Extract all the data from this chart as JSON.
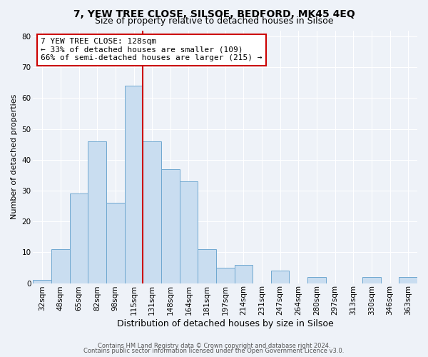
{
  "title": "7, YEW TREE CLOSE, SILSOE, BEDFORD, MK45 4EQ",
  "subtitle": "Size of property relative to detached houses in Silsoe",
  "xlabel": "Distribution of detached houses by size in Silsoe",
  "ylabel": "Number of detached properties",
  "categories": [
    "32sqm",
    "48sqm",
    "65sqm",
    "82sqm",
    "98sqm",
    "115sqm",
    "131sqm",
    "148sqm",
    "164sqm",
    "181sqm",
    "197sqm",
    "214sqm",
    "231sqm",
    "247sqm",
    "264sqm",
    "280sqm",
    "297sqm",
    "313sqm",
    "330sqm",
    "346sqm",
    "363sqm"
  ],
  "values": [
    1,
    11,
    29,
    46,
    26,
    64,
    46,
    37,
    33,
    11,
    5,
    6,
    0,
    4,
    0,
    2,
    0,
    0,
    2,
    0,
    2
  ],
  "bar_color": "#c9ddf0",
  "bar_edge_color": "#6fa8d0",
  "vline_color": "#cc0000",
  "vline_index": 6,
  "annotation_text": "7 YEW TREE CLOSE: 128sqm\n← 33% of detached houses are smaller (109)\n66% of semi-detached houses are larger (215) →",
  "annotation_box_facecolor": "#ffffff",
  "annotation_box_edgecolor": "#cc0000",
  "ylim": [
    0,
    82
  ],
  "yticks": [
    0,
    10,
    20,
    30,
    40,
    50,
    60,
    70,
    80
  ],
  "bg_color": "#eef2f8",
  "footer_line1": "Contains HM Land Registry data © Crown copyright and database right 2024.",
  "footer_line2": "Contains public sector information licensed under the Open Government Licence v3.0.",
  "title_fontsize": 10,
  "subtitle_fontsize": 9,
  "xlabel_fontsize": 9,
  "ylabel_fontsize": 8,
  "tick_fontsize": 7.5,
  "annotation_fontsize": 8,
  "footer_fontsize": 6
}
